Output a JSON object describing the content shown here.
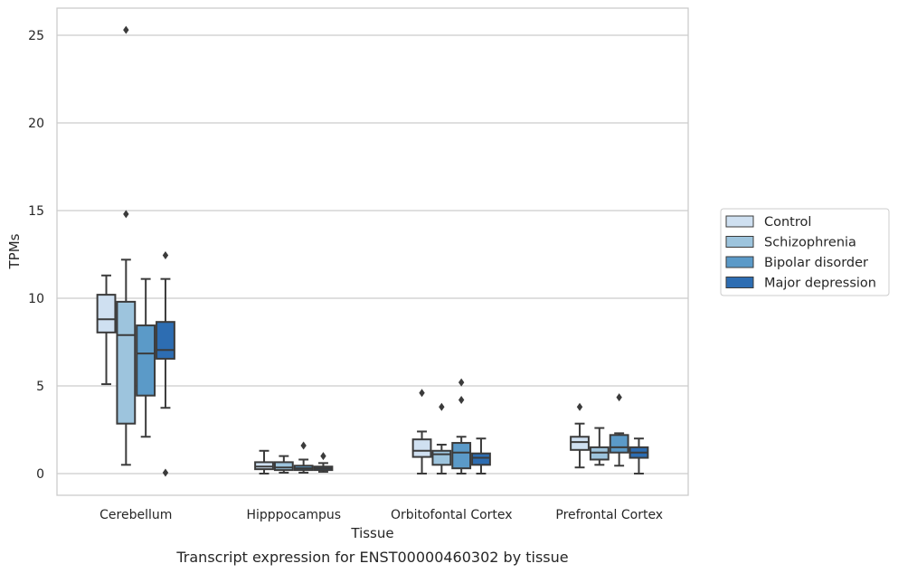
{
  "chart_data": {
    "type": "box",
    "xlabel": "Tissue",
    "ylabel": "TPMs",
    "caption": "Transcript expression for ENST00000460302 by tissue",
    "ylim": [
      -1.2,
      26.5
    ],
    "yticks": [
      0,
      5,
      10,
      15,
      20,
      25
    ],
    "grid": "horizontal",
    "legend_position": "right",
    "categories": [
      "Cerebellum",
      "Hipppocampus",
      "Orbitofontal Cortex",
      "Prefrontal Cortex"
    ],
    "series": [
      {
        "name": "Control",
        "color": "#cfe0f1",
        "boxes": [
          {
            "whisker_low": 5.1,
            "q1": 8.05,
            "median": 8.8,
            "q3": 10.2,
            "whisker_high": 11.3,
            "outliers": []
          },
          {
            "whisker_low": 0.0,
            "q1": 0.25,
            "median": 0.4,
            "q3": 0.65,
            "whisker_high": 1.3,
            "outliers": []
          },
          {
            "whisker_low": 0.0,
            "q1": 0.95,
            "median": 1.3,
            "q3": 1.95,
            "whisker_high": 2.4,
            "outliers": [
              4.6
            ]
          },
          {
            "whisker_low": 0.35,
            "q1": 1.35,
            "median": 1.8,
            "q3": 2.1,
            "whisker_high": 2.85,
            "outliers": [
              3.8
            ]
          }
        ]
      },
      {
        "name": "Schizophrenia",
        "color": "#9dc4dd",
        "boxes": [
          {
            "whisker_low": 0.5,
            "q1": 2.85,
            "median": 7.9,
            "q3": 9.8,
            "whisker_high": 12.2,
            "outliers": [
              25.3,
              14.8
            ]
          },
          {
            "whisker_low": 0.05,
            "q1": 0.2,
            "median": 0.35,
            "q3": 0.65,
            "whisker_high": 1.0,
            "outliers": []
          },
          {
            "whisker_low": 0.0,
            "q1": 0.5,
            "median": 1.1,
            "q3": 1.3,
            "whisker_high": 1.65,
            "outliers": [
              3.8
            ]
          },
          {
            "whisker_low": 0.5,
            "q1": 0.8,
            "median": 1.2,
            "q3": 1.5,
            "whisker_high": 2.6,
            "outliers": []
          }
        ]
      },
      {
        "name": "Bipolar disorder",
        "color": "#5b9ac8",
        "boxes": [
          {
            "whisker_low": 2.1,
            "q1": 4.45,
            "median": 6.85,
            "q3": 8.45,
            "whisker_high": 11.1,
            "outliers": []
          },
          {
            "whisker_low": 0.05,
            "q1": 0.2,
            "median": 0.3,
            "q3": 0.45,
            "whisker_high": 0.8,
            "outliers": [
              1.6
            ]
          },
          {
            "whisker_low": 0.0,
            "q1": 0.3,
            "median": 1.2,
            "q3": 1.75,
            "whisker_high": 2.1,
            "outliers": [
              5.2,
              4.2
            ]
          },
          {
            "whisker_low": 0.45,
            "q1": 1.2,
            "median": 1.5,
            "q3": 2.2,
            "whisker_high": 2.3,
            "outliers": [
              4.35
            ]
          }
        ]
      },
      {
        "name": "Major depression",
        "color": "#2d6db2",
        "boxes": [
          {
            "whisker_low": 3.75,
            "q1": 6.55,
            "median": 7.05,
            "q3": 8.65,
            "whisker_high": 11.1,
            "outliers": [
              12.45,
              0.05
            ]
          },
          {
            "whisker_low": 0.1,
            "q1": 0.2,
            "median": 0.3,
            "q3": 0.4,
            "whisker_high": 0.6,
            "outliers": [
              1.0
            ]
          },
          {
            "whisker_low": 0.0,
            "q1": 0.5,
            "median": 0.9,
            "q3": 1.15,
            "whisker_high": 2.0,
            "outliers": []
          },
          {
            "whisker_low": 0.0,
            "q1": 0.9,
            "median": 1.2,
            "q3": 1.5,
            "whisker_high": 2.0,
            "outliers": []
          }
        ]
      }
    ]
  }
}
